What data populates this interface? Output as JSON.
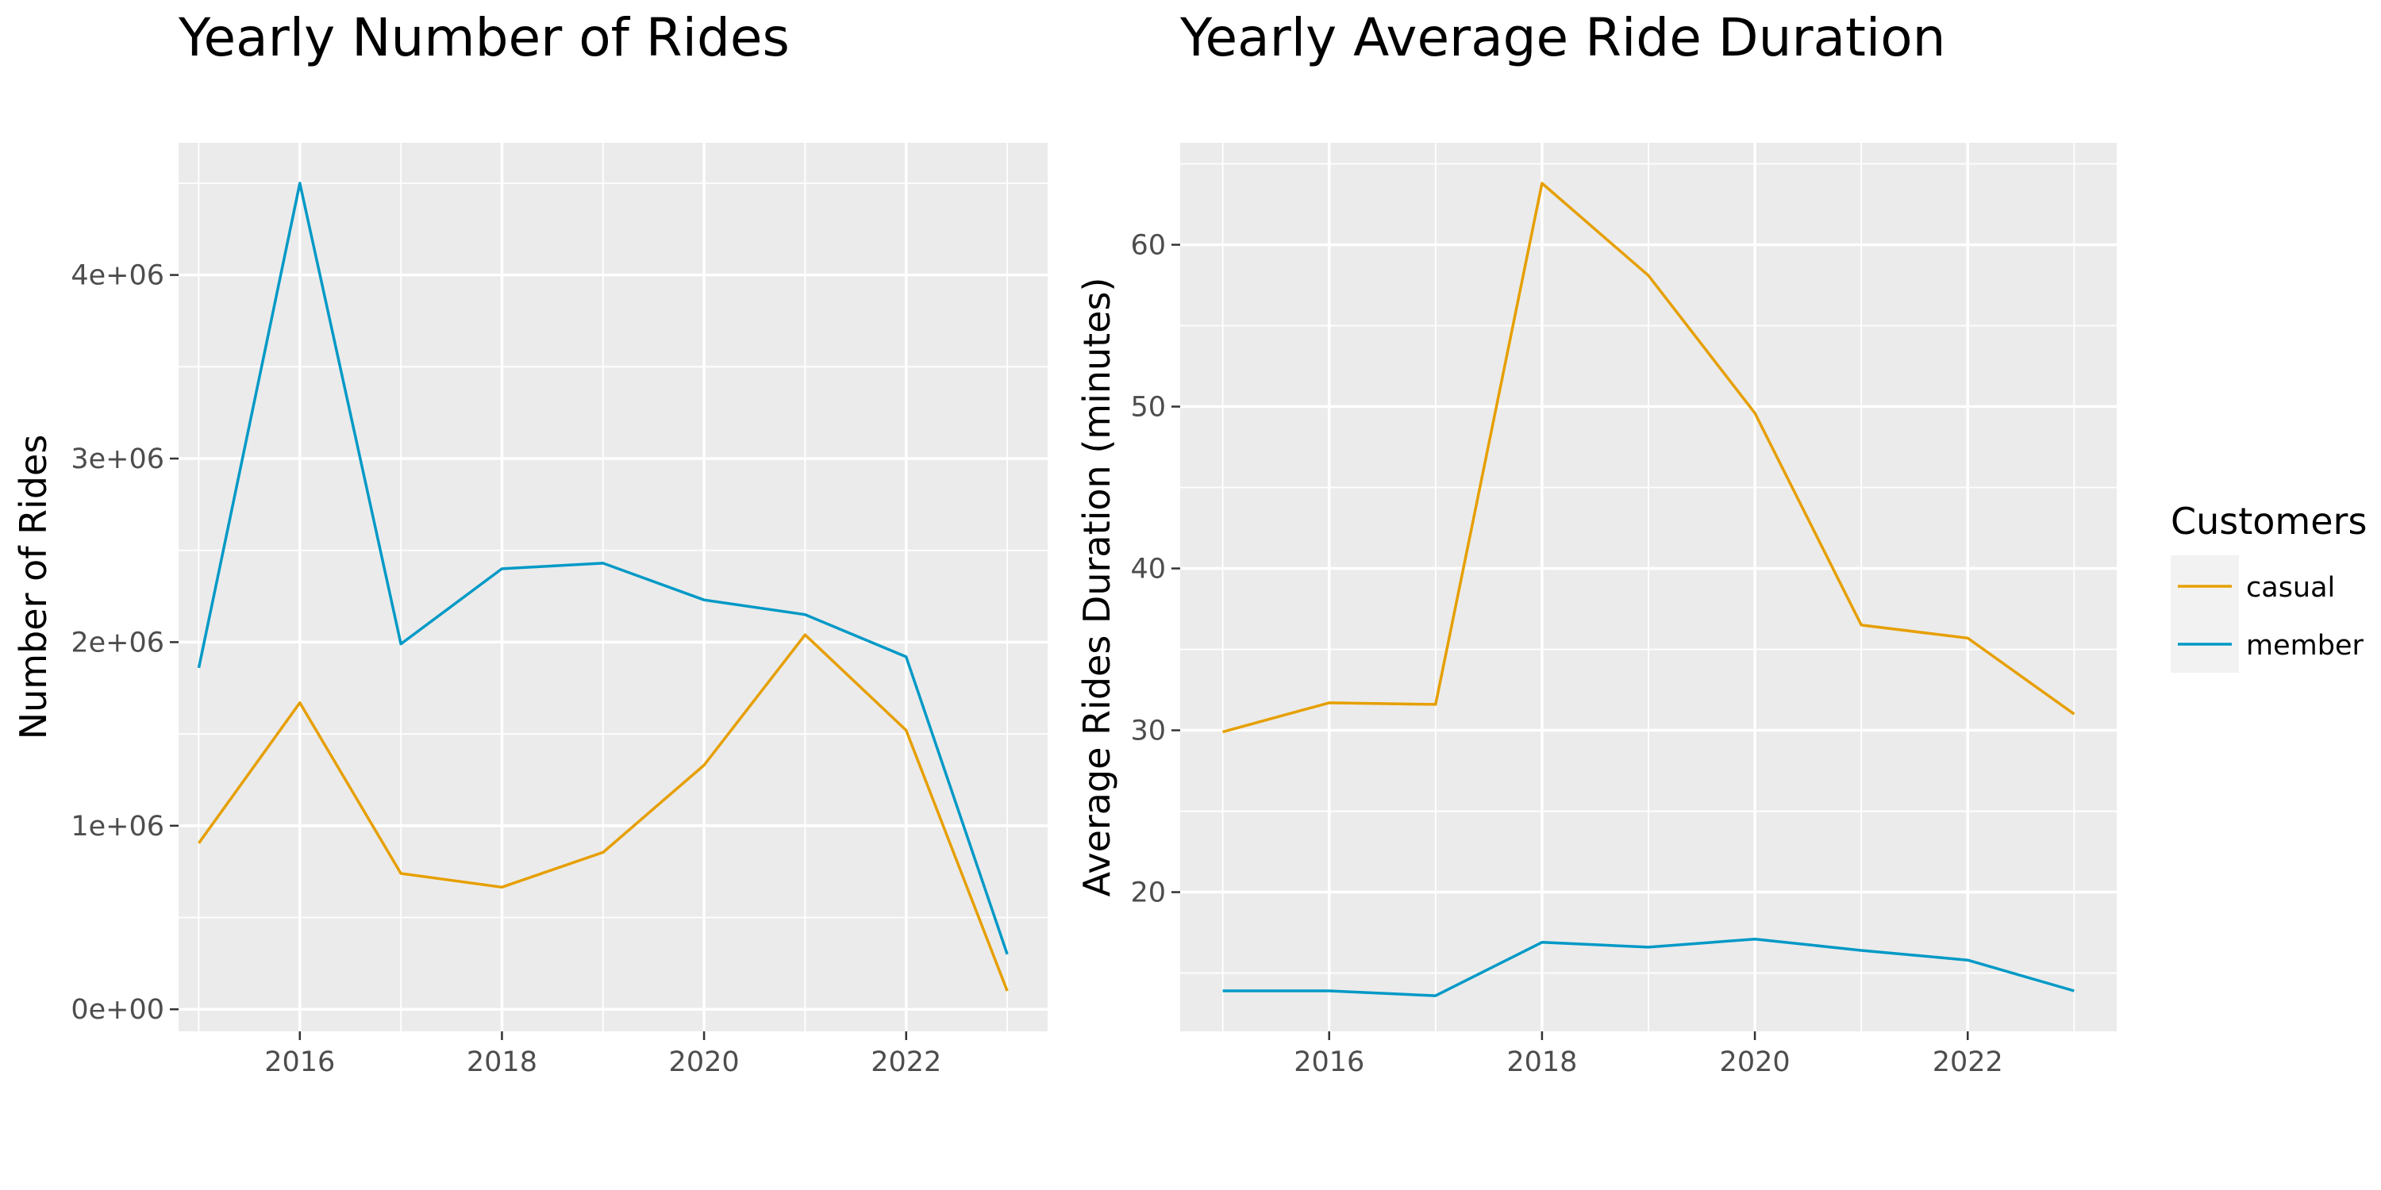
{
  "chart_data": [
    {
      "type": "line",
      "title": "Yearly Number of Rides",
      "xlabel": "",
      "ylabel": "Number of Rides",
      "x": [
        2015,
        2016,
        2017,
        2018,
        2019,
        2020,
        2021,
        2022,
        2023
      ],
      "xlim": [
        2014.8,
        2023.4
      ],
      "ylim": [
        -120000,
        4720000
      ],
      "x_ticks": [
        2016,
        2018,
        2020,
        2022
      ],
      "x_tick_labels": [
        "2016",
        "2018",
        "2020",
        "2022"
      ],
      "y_ticks": [
        0,
        1000000,
        2000000,
        3000000,
        4000000
      ],
      "y_tick_labels": [
        "0e+00",
        "1e+06",
        "2e+06",
        "3e+06",
        "4e+06"
      ],
      "series": [
        {
          "name": "casual",
          "color": "#E69F00",
          "values": [
            905000,
            1670000,
            740000,
            665000,
            855000,
            1330000,
            2040000,
            1520000,
            100000
          ]
        },
        {
          "name": "member",
          "color": "#0099C6",
          "values": [
            1860000,
            4500000,
            1990000,
            2400000,
            2430000,
            2230000,
            2150000,
            1920000,
            300000
          ]
        }
      ],
      "grid": true,
      "panel_background": "#EBEBEB"
    },
    {
      "type": "line",
      "title": "Yearly Average Ride Duration",
      "xlabel": "",
      "ylabel": "Average Rides Duration (minutes)",
      "x": [
        2015,
        2016,
        2017,
        2018,
        2019,
        2020,
        2021,
        2022,
        2023
      ],
      "xlim": [
        2014.6,
        2023.4
      ],
      "ylim": [
        11.4,
        66.3
      ],
      "x_ticks": [
        2016,
        2018,
        2020,
        2022
      ],
      "x_tick_labels": [
        "2016",
        "2018",
        "2020",
        "2022"
      ],
      "y_ticks": [
        20,
        30,
        40,
        50,
        60
      ],
      "y_tick_labels": [
        "20",
        "30",
        "40",
        "50",
        "60"
      ],
      "series": [
        {
          "name": "casual",
          "color": "#E69F00",
          "values": [
            29.9,
            31.7,
            31.6,
            63.8,
            58.1,
            49.6,
            36.5,
            35.7,
            31.0
          ]
        },
        {
          "name": "member",
          "color": "#0099C6",
          "values": [
            13.9,
            13.9,
            13.6,
            16.9,
            16.6,
            17.1,
            16.4,
            15.8,
            13.9
          ]
        }
      ],
      "grid": true,
      "panel_background": "#EBEBEB"
    }
  ],
  "legend": {
    "title": "Customers",
    "placement": "right",
    "items": [
      {
        "label": "casual",
        "color": "#E69F00"
      },
      {
        "label": "member",
        "color": "#0099C6"
      }
    ]
  }
}
